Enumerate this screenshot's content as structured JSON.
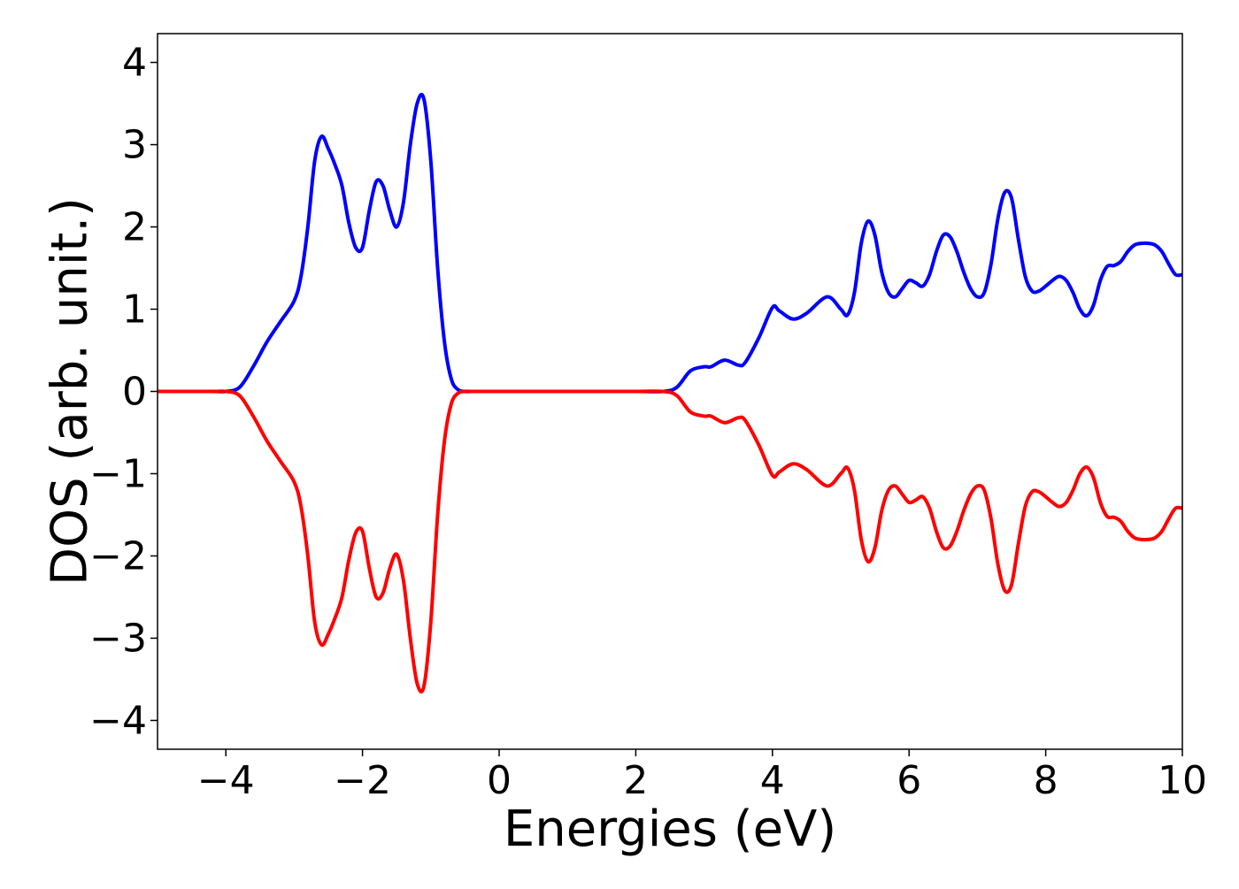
{
  "chart_data": {
    "type": "line",
    "title": "",
    "xlabel": "Energies (eV)",
    "ylabel": "DOS (arb. unit.)",
    "xlim": [
      -5,
      10
    ],
    "ylim": [
      -4.35,
      4.35
    ],
    "xticks": [
      -4,
      -2,
      0,
      2,
      4,
      6,
      8,
      10
    ],
    "xtick_labels": [
      "−4",
      "−2",
      "0",
      "2",
      "4",
      "6",
      "8",
      "10"
    ],
    "yticks": [
      -4,
      -3,
      -2,
      -1,
      0,
      1,
      2,
      3,
      4
    ],
    "ytick_labels": [
      "−4",
      "−3",
      "−2",
      "−1",
      "0",
      "1",
      "2",
      "3",
      "4"
    ],
    "grid": false,
    "legend": "none",
    "series": [
      {
        "color": "#0000ff",
        "x": [
          -5.0,
          -4.2,
          -4.0,
          -3.8,
          -3.6,
          -3.4,
          -3.2,
          -3.0,
          -2.9,
          -2.8,
          -2.7,
          -2.6,
          -2.5,
          -2.4,
          -2.3,
          -2.2,
          -2.1,
          -2.0,
          -1.9,
          -1.8,
          -1.7,
          -1.6,
          -1.5,
          -1.4,
          -1.3,
          -1.2,
          -1.1,
          -1.0,
          -0.9,
          -0.8,
          -0.7,
          -0.6,
          -0.5,
          -0.4,
          0.0,
          1.0,
          2.0,
          2.4,
          2.6,
          2.8,
          3.0,
          3.1,
          3.3,
          3.5,
          3.6,
          3.8,
          4.0,
          4.1,
          4.3,
          4.5,
          4.8,
          5.0,
          5.1,
          5.2,
          5.3,
          5.4,
          5.5,
          5.6,
          5.7,
          5.8,
          5.9,
          6.0,
          6.1,
          6.2,
          6.3,
          6.4,
          6.5,
          6.6,
          6.7,
          6.8,
          6.9,
          7.0,
          7.1,
          7.2,
          7.3,
          7.4,
          7.5,
          7.6,
          7.7,
          7.8,
          7.9,
          8.0,
          8.1,
          8.2,
          8.3,
          8.4,
          8.5,
          8.6,
          8.7,
          8.8,
          8.9,
          9.0,
          9.1,
          9.2,
          9.3,
          9.4,
          9.5,
          9.6,
          9.7,
          9.8,
          9.9,
          10.0
        ],
        "y": [
          0.0,
          0.0,
          0.0,
          0.05,
          0.3,
          0.6,
          0.85,
          1.1,
          1.4,
          2.0,
          2.8,
          3.1,
          2.95,
          2.75,
          2.5,
          2.05,
          1.75,
          1.75,
          2.2,
          2.55,
          2.5,
          2.2,
          2.0,
          2.3,
          3.0,
          3.5,
          3.55,
          2.8,
          1.5,
          0.6,
          0.15,
          0.02,
          0.0,
          0.0,
          0.0,
          0.0,
          0.0,
          0.0,
          0.05,
          0.25,
          0.3,
          0.3,
          0.38,
          0.32,
          0.35,
          0.65,
          1.02,
          0.98,
          0.88,
          0.95,
          1.15,
          1.0,
          0.93,
          1.2,
          1.8,
          2.07,
          1.9,
          1.45,
          1.2,
          1.15,
          1.25,
          1.35,
          1.32,
          1.28,
          1.42,
          1.7,
          1.9,
          1.88,
          1.7,
          1.45,
          1.25,
          1.15,
          1.2,
          1.55,
          2.1,
          2.42,
          2.35,
          1.85,
          1.4,
          1.22,
          1.22,
          1.28,
          1.35,
          1.4,
          1.35,
          1.2,
          1.0,
          0.92,
          1.05,
          1.35,
          1.52,
          1.53,
          1.58,
          1.7,
          1.78,
          1.8,
          1.8,
          1.78,
          1.7,
          1.55,
          1.42,
          1.42
        ]
      },
      {
        "color": "#ff0000",
        "x": [
          -5.0,
          -4.2,
          -4.0,
          -3.8,
          -3.6,
          -3.4,
          -3.2,
          -3.0,
          -2.9,
          -2.8,
          -2.7,
          -2.6,
          -2.5,
          -2.4,
          -2.3,
          -2.2,
          -2.1,
          -2.0,
          -1.9,
          -1.8,
          -1.7,
          -1.6,
          -1.5,
          -1.4,
          -1.3,
          -1.2,
          -1.1,
          -1.0,
          -0.9,
          -0.8,
          -0.7,
          -0.6,
          -0.5,
          -0.4,
          0.0,
          1.0,
          2.0,
          2.4,
          2.6,
          2.8,
          3.0,
          3.1,
          3.3,
          3.5,
          3.6,
          3.8,
          4.0,
          4.1,
          4.3,
          4.5,
          4.8,
          5.0,
          5.1,
          5.2,
          5.3,
          5.4,
          5.5,
          5.6,
          5.7,
          5.8,
          5.9,
          6.0,
          6.1,
          6.2,
          6.3,
          6.4,
          6.5,
          6.6,
          6.7,
          6.8,
          6.9,
          7.0,
          7.1,
          7.2,
          7.3,
          7.4,
          7.5,
          7.6,
          7.7,
          7.8,
          7.9,
          8.0,
          8.1,
          8.2,
          8.3,
          8.4,
          8.5,
          8.6,
          8.7,
          8.8,
          8.9,
          9.0,
          9.1,
          9.2,
          9.3,
          9.4,
          9.5,
          9.6,
          9.7,
          9.8,
          9.9,
          10.0
        ],
        "y": [
          0.0,
          0.0,
          0.0,
          -0.05,
          -0.3,
          -0.6,
          -0.85,
          -1.1,
          -1.4,
          -2.0,
          -2.8,
          -3.08,
          -2.95,
          -2.75,
          -2.5,
          -2.05,
          -1.72,
          -1.7,
          -2.15,
          -2.5,
          -2.45,
          -2.15,
          -1.98,
          -2.3,
          -3.0,
          -3.55,
          -3.58,
          -2.8,
          -1.5,
          -0.6,
          -0.15,
          -0.02,
          0.0,
          0.0,
          0.0,
          0.0,
          0.0,
          0.0,
          -0.05,
          -0.25,
          -0.3,
          -0.3,
          -0.38,
          -0.32,
          -0.35,
          -0.65,
          -1.02,
          -0.98,
          -0.88,
          -0.95,
          -1.15,
          -1.0,
          -0.93,
          -1.2,
          -1.8,
          -2.07,
          -1.9,
          -1.45,
          -1.2,
          -1.15,
          -1.25,
          -1.35,
          -1.32,
          -1.28,
          -1.42,
          -1.7,
          -1.9,
          -1.88,
          -1.7,
          -1.45,
          -1.25,
          -1.15,
          -1.2,
          -1.55,
          -2.1,
          -2.42,
          -2.35,
          -1.85,
          -1.4,
          -1.22,
          -1.22,
          -1.28,
          -1.35,
          -1.4,
          -1.35,
          -1.2,
          -1.0,
          -0.92,
          -1.05,
          -1.35,
          -1.52,
          -1.53,
          -1.58,
          -1.7,
          -1.78,
          -1.8,
          -1.8,
          -1.78,
          -1.7,
          -1.55,
          -1.42,
          -1.42
        ]
      }
    ]
  }
}
